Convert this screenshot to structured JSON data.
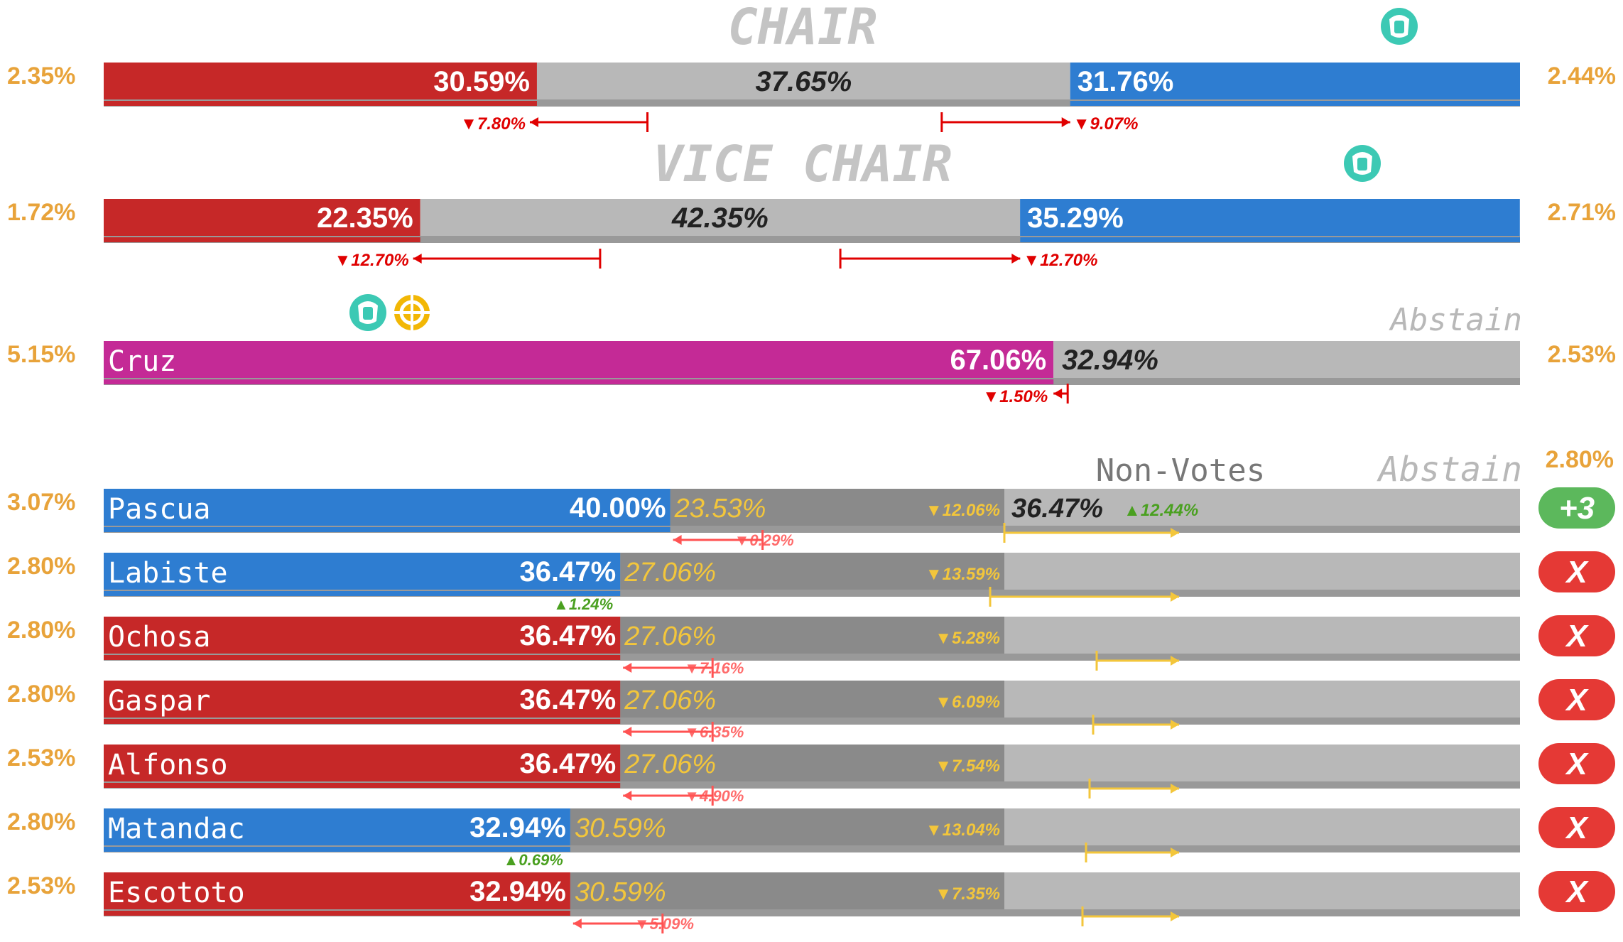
{
  "colors": {
    "red": "#c62828",
    "blue": "#2e7dd1",
    "magenta": "#c42a96",
    "abstain_gray": "#b8b8b8",
    "nonvote_gray": "#8a8a8a",
    "side_pct": "#e8a33a",
    "yellow_text": "#f3c63b",
    "delta_red": "#e00000",
    "delta_green": "#4aa020",
    "badge_green": "#5cb85c",
    "badge_red": "#e53935",
    "icon_teal": "#3cc9b4",
    "icon_yellow": "#f2b705"
  },
  "chart_data": [
    {
      "type": "bar",
      "title": "CHAIR",
      "left_side_pct": "2.35%",
      "right_side_pct": "2.44%",
      "segments": [
        {
          "color": "red",
          "value": 30.59,
          "label": "30.59%"
        },
        {
          "color": "gray",
          "value": 37.65,
          "label": "37.65%"
        },
        {
          "color": "blue",
          "value": 31.76,
          "label": "31.76%"
        }
      ],
      "changes": [
        {
          "label": "▼7.80%",
          "direction": "down",
          "value": 7.8
        },
        {
          "label": "▼9.07%",
          "direction": "down",
          "value": 9.07
        }
      ],
      "icons": [
        "mask-icon"
      ]
    },
    {
      "type": "bar",
      "title": "VICE CHAIR",
      "left_side_pct": "1.72%",
      "right_side_pct": "2.71%",
      "segments": [
        {
          "color": "red",
          "value": 22.35,
          "label": "22.35%"
        },
        {
          "color": "gray",
          "value": 42.35,
          "label": "42.35%"
        },
        {
          "color": "blue",
          "value": 35.29,
          "label": "35.29%"
        }
      ],
      "changes": [
        {
          "label": "▼12.70%",
          "direction": "down",
          "value": 12.7
        },
        {
          "label": "▼12.70%",
          "direction": "down",
          "value": 12.7
        }
      ],
      "icons": [
        "mask-icon"
      ]
    },
    {
      "type": "bar",
      "title": "",
      "abstain_label": "Abstain",
      "left_side_pct": "5.15%",
      "right_side_pct": "2.53%",
      "candidate": "Cruz",
      "segments": [
        {
          "color": "magenta",
          "value": 67.06,
          "label": "67.06%"
        },
        {
          "color": "gray",
          "value": 32.94,
          "label": "32.94%"
        }
      ],
      "changes": [
        {
          "label": "▼1.50%",
          "direction": "down",
          "value": 1.5
        }
      ],
      "icons": [
        "mask-icon",
        "lifebuoy-icon"
      ]
    },
    {
      "type": "bar",
      "title": "",
      "header_nonvotes": "Non-Votes",
      "header_abstain": "Abstain",
      "header_right_pct": "2.80%",
      "rows": [
        {
          "name": "Pascua",
          "side_pct": "3.07%",
          "party": "blue",
          "yes": 40.0,
          "yes_label": "40.00%",
          "no": 23.53,
          "no_label": "23.53%",
          "nonvote_delta": "▼12.06%",
          "yes_change": "▼0.29%",
          "yes_change_dir": "down",
          "abstain_label": "36.47%",
          "abstain_change": "▲12.44%",
          "badge": "+3"
        },
        {
          "name": "Labiste",
          "side_pct": "2.80%",
          "party": "blue",
          "yes": 36.47,
          "yes_label": "36.47%",
          "no": 27.06,
          "no_label": "27.06%",
          "nonvote_delta": "▼13.59%",
          "yes_change": "▲1.24%",
          "yes_change_dir": "up",
          "badge": "X"
        },
        {
          "name": "Ochosa",
          "side_pct": "2.80%",
          "party": "red",
          "yes": 36.47,
          "yes_label": "36.47%",
          "no": 27.06,
          "no_label": "27.06%",
          "nonvote_delta": "▼5.28%",
          "yes_change": "▼7.16%",
          "yes_change_dir": "down",
          "badge": "X"
        },
        {
          "name": "Gaspar",
          "side_pct": "2.80%",
          "party": "red",
          "yes": 36.47,
          "yes_label": "36.47%",
          "no": 27.06,
          "no_label": "27.06%",
          "nonvote_delta": "▼6.09%",
          "yes_change": "▼6.35%",
          "yes_change_dir": "down",
          "badge": "X"
        },
        {
          "name": "Alfonso",
          "side_pct": "2.53%",
          "party": "red",
          "yes": 36.47,
          "yes_label": "36.47%",
          "no": 27.06,
          "no_label": "27.06%",
          "nonvote_delta": "▼7.54%",
          "yes_change": "▼4.90%",
          "yes_change_dir": "down",
          "badge": "X"
        },
        {
          "name": "Matandac",
          "side_pct": "2.80%",
          "party": "blue",
          "yes": 32.94,
          "yes_label": "32.94%",
          "no": 30.59,
          "no_label": "30.59%",
          "nonvote_delta": "▼13.04%",
          "yes_change": "▲0.69%",
          "yes_change_dir": "up",
          "badge": "X"
        },
        {
          "name": "Escototo",
          "side_pct": "2.53%",
          "party": "red",
          "yes": 32.94,
          "yes_label": "32.94%",
          "no": 30.59,
          "no_label": "30.59%",
          "nonvote_delta": "▼7.35%",
          "yes_change": "▼5.09%",
          "yes_change_dir": "down",
          "badge": "X"
        }
      ]
    }
  ]
}
